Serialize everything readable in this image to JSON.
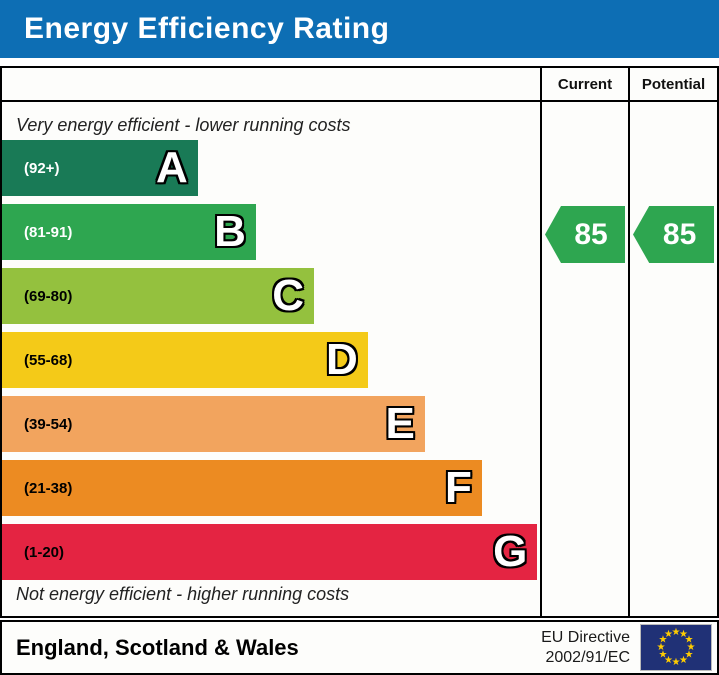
{
  "title": {
    "text": "Energy Efficiency Rating",
    "bg_color": "#0d6eb4",
    "text_color": "#ffffff"
  },
  "table": {
    "header": {
      "current": "Current",
      "potential": "Potential"
    },
    "top_note": "Very energy efficient - lower running costs",
    "bottom_note": "Not energy efficient - higher running costs",
    "bands": [
      {
        "letter": "A",
        "range": "(92+)",
        "color": "#197a56",
        "width_pct": 36.4,
        "label_color": "#ffffff"
      },
      {
        "letter": "B",
        "range": "(81-91)",
        "color": "#2ea650",
        "width_pct": 47.2,
        "label_color": "#ffffff"
      },
      {
        "letter": "C",
        "range": "(69-80)",
        "color": "#94c13e",
        "width_pct": 58.0,
        "label_color": "#000000"
      },
      {
        "letter": "D",
        "range": "(55-68)",
        "color": "#f4ca18",
        "width_pct": 68.0,
        "label_color": "#000000"
      },
      {
        "letter": "E",
        "range": "(39-54)",
        "color": "#f2a45e",
        "width_pct": 78.6,
        "label_color": "#000000"
      },
      {
        "letter": "F",
        "range": "(21-38)",
        "color": "#ec8b22",
        "width_pct": 89.2,
        "label_color": "#000000"
      },
      {
        "letter": "G",
        "range": "(1-20)",
        "color": "#e42442",
        "width_pct": 99.5,
        "label_color": "#000000"
      }
    ],
    "current": {
      "value": "85",
      "arrow_color": "#2ea650"
    },
    "potential": {
      "value": "85",
      "arrow_color": "#2ea650"
    }
  },
  "footer": {
    "region": "England, Scotland & Wales",
    "directive_line1": "EU Directive",
    "directive_line2": "2002/91/EC",
    "eu_flag": {
      "bg_color": "#203176",
      "star_color": "#ffcc00",
      "star_count": 12
    }
  },
  "chart_data": {
    "type": "bar",
    "title": "Energy Efficiency Rating",
    "categories": [
      "A",
      "B",
      "C",
      "D",
      "E",
      "F",
      "G"
    ],
    "band_ranges": [
      "92+",
      "81-91",
      "69-80",
      "55-68",
      "39-54",
      "21-38",
      "1-20"
    ],
    "band_colors": [
      "#197a56",
      "#2ea650",
      "#94c13e",
      "#f4ca18",
      "#f2a45e",
      "#ec8b22",
      "#e42442"
    ],
    "bar_length_pct": [
      36.4,
      47.2,
      58.0,
      68.0,
      78.6,
      89.2,
      99.5
    ],
    "series": [
      {
        "name": "Current",
        "value": 85,
        "band": "B"
      },
      {
        "name": "Potential",
        "value": 85,
        "band": "B"
      }
    ],
    "annotations": [
      "Very energy efficient - lower running costs",
      "Not energy efficient - higher running costs"
    ],
    "legend_position": "none",
    "region_note": "England, Scotland & Wales",
    "directive": "EU Directive 2002/91/EC"
  }
}
